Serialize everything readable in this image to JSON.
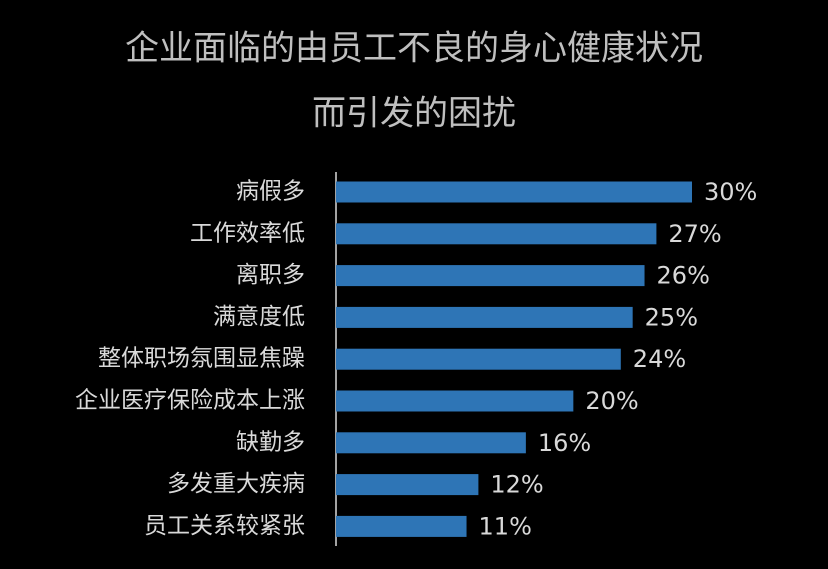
{
  "chart_data": {
    "type": "bar",
    "orientation": "horizontal",
    "title": [
      "企业面临的由员工不良的身心健康状况",
      "而引发的困扰"
    ],
    "categories": [
      "病假多",
      "工作效率低",
      "离职多",
      "满意度低",
      "整体职场氛围显焦躁",
      "企业医疗保险成本上涨",
      "缺勤多",
      "多发重大疾病",
      "员工关系较紧张"
    ],
    "values": [
      30,
      27,
      26,
      25,
      24,
      20,
      16,
      12,
      11
    ],
    "value_labels": [
      "30%",
      "27%",
      "26%",
      "25%",
      "24%",
      "20%",
      "16%",
      "12%",
      "11%"
    ],
    "color": "#2e75b6"
  }
}
